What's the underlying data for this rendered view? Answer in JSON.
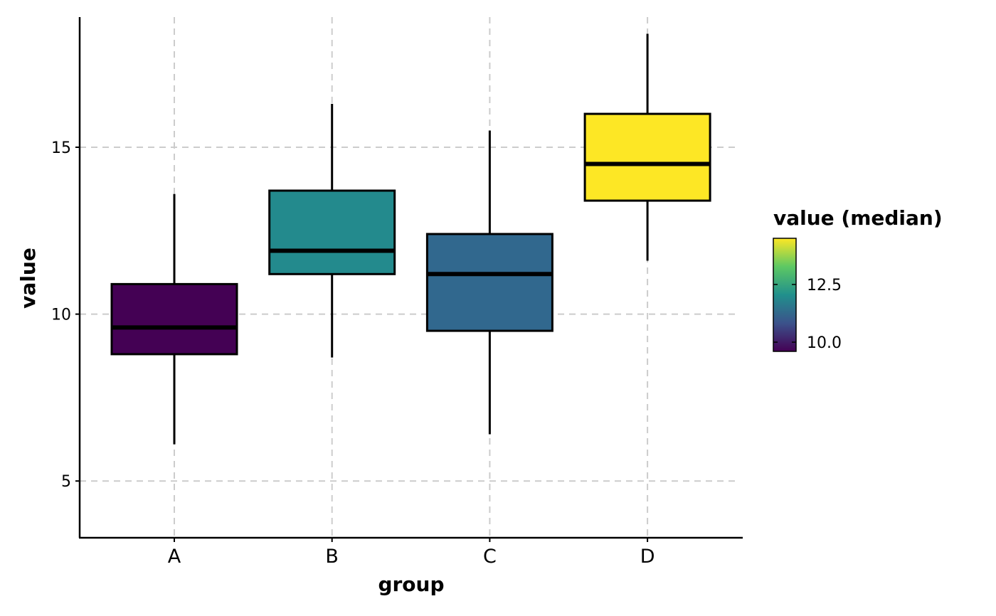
{
  "chart_data": {
    "type": "boxplot",
    "xlabel": "group",
    "ylabel": "value",
    "ylim": [
      3.3,
      18.9
    ],
    "yticks": [
      5,
      10,
      15
    ],
    "ytick_labels": [
      "5",
      "10",
      "15"
    ],
    "grid": true,
    "categories": [
      "A",
      "B",
      "C",
      "D"
    ],
    "boxes": [
      {
        "group": "A",
        "whisker_low": 6.1,
        "q1": 8.8,
        "median": 9.6,
        "q3": 10.9,
        "whisker_high": 13.6,
        "fill": "#440154"
      },
      {
        "group": "B",
        "whisker_low": 8.7,
        "q1": 11.2,
        "median": 11.9,
        "q3": 13.7,
        "whisker_high": 16.3,
        "fill": "#238A8D"
      },
      {
        "group": "C",
        "whisker_low": 6.4,
        "q1": 9.5,
        "median": 11.2,
        "q3": 12.4,
        "whisker_high": 15.5,
        "fill": "#31688E"
      },
      {
        "group": "D",
        "whisker_low": 11.6,
        "q1": 13.4,
        "median": 14.5,
        "q3": 16.0,
        "whisker_high": 18.4,
        "fill": "#FDE725"
      }
    ],
    "legend": {
      "title": "value (median)",
      "placement": "right",
      "range": [
        9.6,
        14.5
      ],
      "ticks": [
        10.0,
        12.5
      ],
      "tick_labels": [
        "10.0",
        "12.5"
      ],
      "colormap": [
        "#440154",
        "#3B528B",
        "#21908C",
        "#5DC863",
        "#FDE725"
      ]
    }
  }
}
